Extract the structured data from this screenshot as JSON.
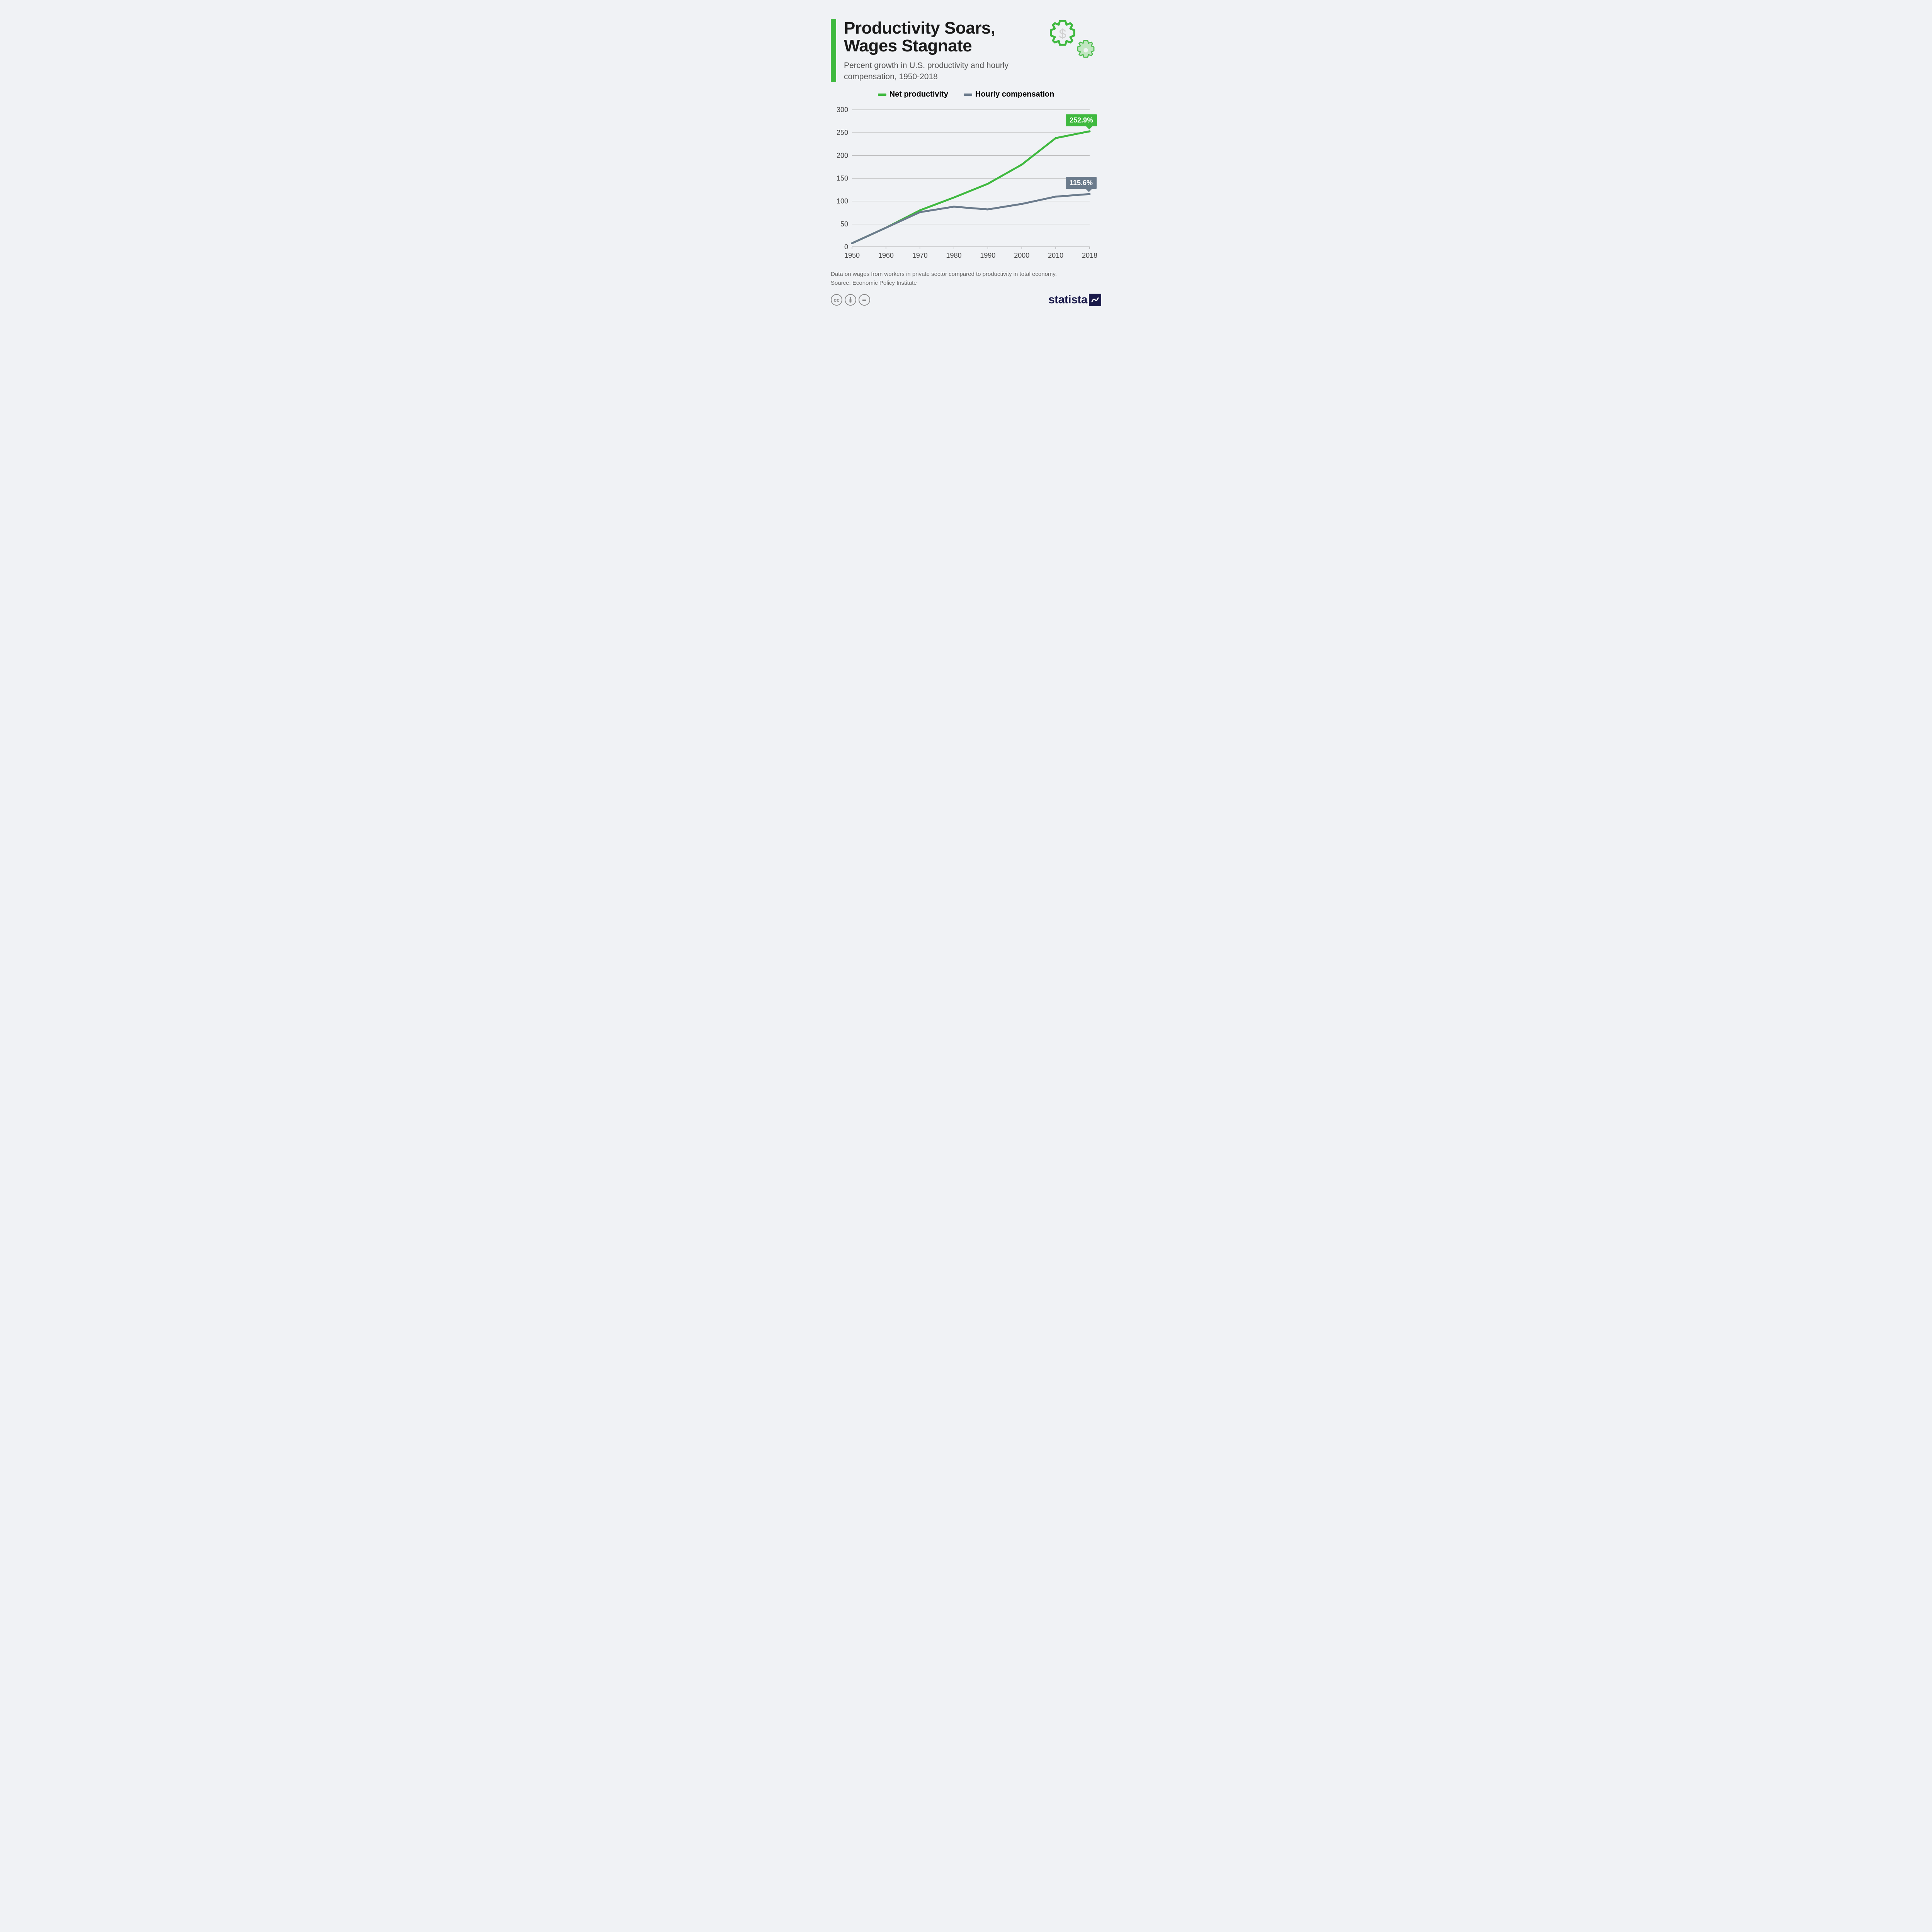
{
  "header": {
    "title": "Productivity Soars, Wages Stagnate",
    "subtitle": "Percent growth in U.S. productivity and hourly compensation, 1950-2018",
    "accent_color": "#3fb93f"
  },
  "legend": {
    "items": [
      {
        "label": "Net productivity",
        "color": "#3fb93f"
      },
      {
        "label": "Hourly compensation",
        "color": "#6b7b8c"
      }
    ]
  },
  "chart": {
    "type": "line",
    "background_color": "#f0f2f5",
    "grid_color": "#b5b5b5",
    "axis_color": "#666666",
    "tick_fontsize": 18,
    "tick_color": "#444444",
    "line_width": 5,
    "x_categories": [
      "1950",
      "1960",
      "1970",
      "1980",
      "1990",
      "2000",
      "2010",
      "2018"
    ],
    "ylim": [
      0,
      300
    ],
    "ytick_step": 50,
    "series": [
      {
        "name": "Net productivity",
        "color": "#3fb93f",
        "values": [
          8,
          42,
          80,
          108,
          138,
          180,
          238,
          252.9
        ],
        "callout": {
          "text": "252.9%",
          "bg": "#3fb93f"
        }
      },
      {
        "name": "Hourly compensation",
        "color": "#6b7b8c",
        "values": [
          8,
          42,
          76,
          88,
          82,
          94,
          110,
          115.6
        ],
        "callout": {
          "text": "115.6%",
          "bg": "#6b7b8c"
        }
      }
    ]
  },
  "note": "Data on wages from workers in private sector compared to productivity in total economy.",
  "source": "Source: Economic Policy Institute",
  "footer": {
    "brand": "statista",
    "cc_icons": [
      "cc",
      "by",
      "nd"
    ]
  },
  "icons": {
    "gear_color": "#3fb93f",
    "gear_fill_light": "#bce5bc",
    "dollar_color": "#d0d0d0"
  }
}
